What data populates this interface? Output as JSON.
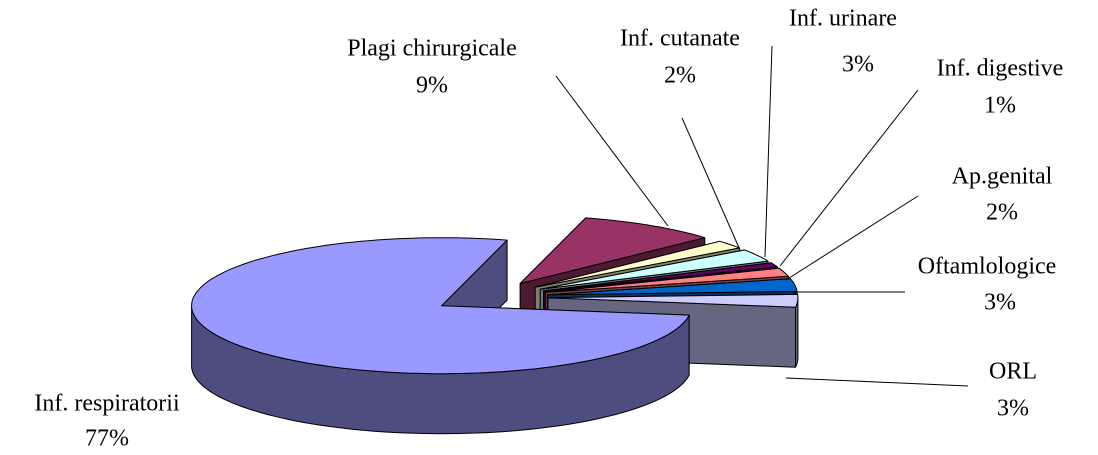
{
  "chart_data": {
    "type": "pie3d",
    "categories": [
      "Inf. respiratorii",
      "Plagi chirurgicale",
      "Inf. cutanate",
      "Inf. urinare",
      "Inf. digestive",
      "Ap.genital",
      "Oftamlologice",
      "ORL"
    ],
    "values": [
      77,
      9,
      2,
      3,
      1,
      2,
      3,
      3
    ],
    "value_labels": [
      "77%",
      "9%",
      "2%",
      "3%",
      "1%",
      "2%",
      "3%",
      "3%"
    ],
    "colors": [
      "#9999ff",
      "#993366",
      "#ffffcc",
      "#ccffff",
      "#660066",
      "#ff8080",
      "#0066cc",
      "#ccccff"
    ]
  }
}
